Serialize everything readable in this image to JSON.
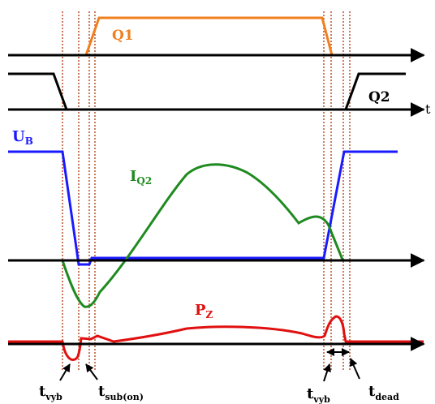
{
  "labels": {
    "q1": "Q1",
    "q2": "Q2",
    "ub_main": "U",
    "ub_sub": "B",
    "iq2_main": "I",
    "iq2_sub": "Q2",
    "pz_main": "P",
    "pz_sub": "Z",
    "t_vyb_left_main": "t",
    "t_vyb_left_sub": "vyb",
    "t_sub_on_main": "t",
    "t_sub_on_sub": "sub(on)",
    "t_vyb_right_main": "t",
    "t_vyb_right_sub": "vyb",
    "t_dead_main": "t",
    "t_dead_sub": "dead",
    "axis_q2_t": "t"
  },
  "colors": {
    "q1": "#f07f1e",
    "q2": "#000000",
    "ub": "#1a1aff",
    "iq2": "#1f8a1f",
    "pz": "#e01010",
    "markers": "#b5451b",
    "axis": "#000000"
  }
}
